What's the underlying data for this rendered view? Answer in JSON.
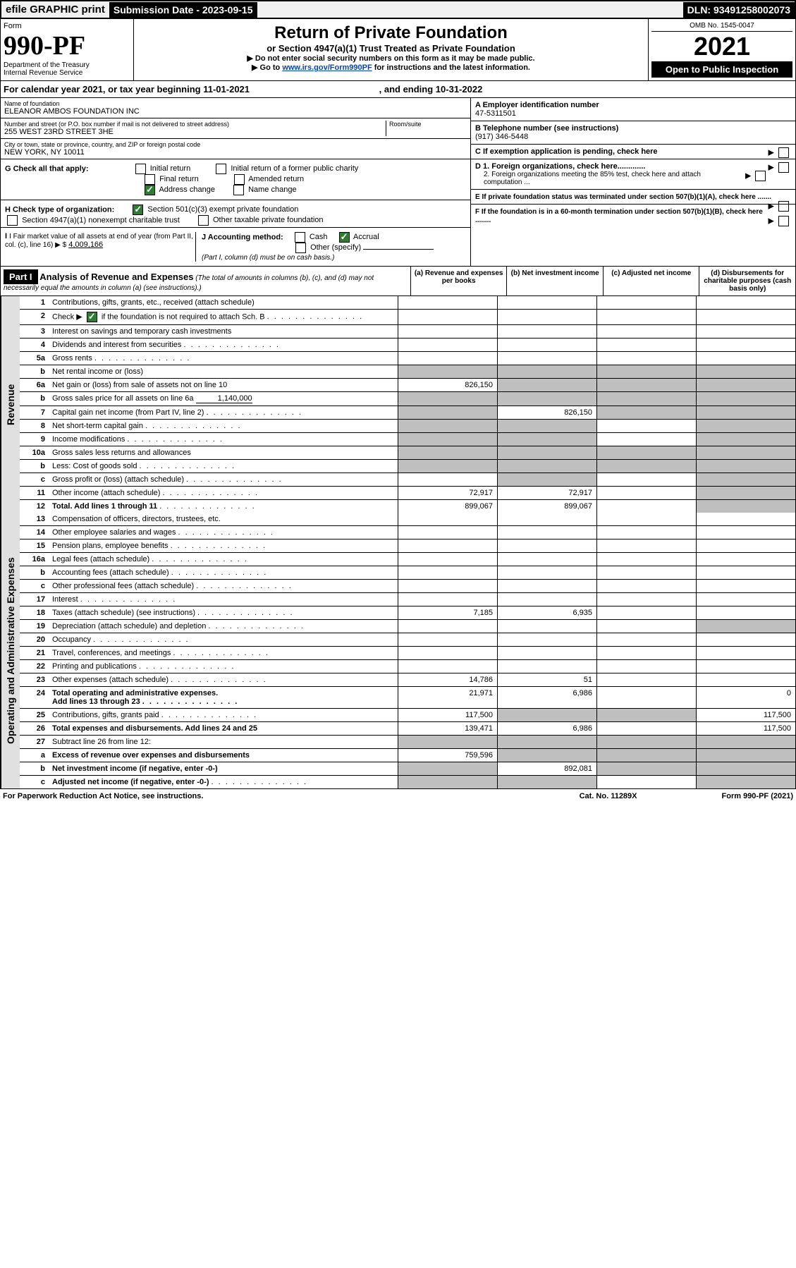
{
  "topbar": {
    "efile": "efile GRAPHIC print",
    "subdate_label": "Submission Date - 2023-09-15",
    "dln": "DLN: 93491258002073"
  },
  "header": {
    "form_word": "Form",
    "form_no": "990-PF",
    "dept": "Department of the Treasury",
    "irs": "Internal Revenue Service",
    "title": "Return of Private Foundation",
    "subtitle": "or Section 4947(a)(1) Trust Treated as Private Foundation",
    "instr1": "▶ Do not enter social security numbers on this form as it may be made public.",
    "instr2_pre": "▶ Go to ",
    "instr2_link": "www.irs.gov/Form990PF",
    "instr2_post": " for instructions and the latest information.",
    "omb": "OMB No. 1545-0047",
    "year": "2021",
    "inspect": "Open to Public Inspection"
  },
  "cal": {
    "pre": "For calendar year 2021, or tax year beginning ",
    "begin": "11-01-2021",
    "mid": " , and ending ",
    "end": "10-31-2022"
  },
  "entity": {
    "name_lbl": "Name of foundation",
    "name": "ELEANOR AMBOS FOUNDATION INC",
    "addr_lbl": "Number and street (or P.O. box number if mail is not delivered to street address)",
    "room_lbl": "Room/suite",
    "addr": "255 WEST 23RD STREET 3HE",
    "city_lbl": "City or town, state or province, country, and ZIP or foreign postal code",
    "city": "NEW YORK, NY  10011"
  },
  "right": {
    "a_lbl": "A Employer identification number",
    "a_val": "47-5311501",
    "b_lbl": "B Telephone number (see instructions)",
    "b_val": "(917) 346-5448",
    "c_lbl": "C If exemption application is pending, check here",
    "d1": "D 1. Foreign organizations, check here.............",
    "d2": "2. Foreign organizations meeting the 85% test, check here and attach computation ...",
    "e": "E If private foundation status was terminated under section 507(b)(1)(A), check here .......",
    "f": "F If the foundation is in a 60-month termination under section 507(b)(1)(B), check here ........"
  },
  "g": {
    "label": "G Check all that apply:",
    "opts": [
      "Initial return",
      "Initial return of a former public charity",
      "Final return",
      "Amended return",
      "Address change",
      "Name change"
    ]
  },
  "h": {
    "label": "H Check type of organization:",
    "o1": "Section 501(c)(3) exempt private foundation",
    "o2": "Section 4947(a)(1) nonexempt charitable trust",
    "o3": "Other taxable private foundation"
  },
  "i": {
    "label": "I Fair market value of all assets at end of year (from Part II, col. (c), line 16) ▶ $",
    "val": "4,009,166"
  },
  "j": {
    "label": "J Accounting method:",
    "o1": "Cash",
    "o2": "Accrual",
    "o3": "Other (specify)",
    "note": "(Part I, column (d) must be on cash basis.)"
  },
  "part1": {
    "hdr": "Part I",
    "title": "Analysis of Revenue and Expenses",
    "sub": "(The total of amounts in columns (b), (c), and (d) may not necessarily equal the amounts in column (a) (see instructions).)",
    "cols": {
      "a": "(a) Revenue and expenses per books",
      "b": "(b) Net investment income",
      "c": "(c) Adjusted net income",
      "d": "(d) Disbursements for charitable purposes (cash basis only)"
    }
  },
  "sections": {
    "rev": "Revenue",
    "exp": "Operating and Administrative Expenses"
  },
  "lines": {
    "1": {
      "n": "1",
      "d": "Contributions, gifts, grants, etc., received (attach schedule)"
    },
    "2": {
      "n": "2",
      "d_pre": "Check ▶ ",
      "d_post": " if the foundation is not required to attach Sch. B"
    },
    "3": {
      "n": "3",
      "d": "Interest on savings and temporary cash investments"
    },
    "4": {
      "n": "4",
      "d": "Dividends and interest from securities"
    },
    "5a": {
      "n": "5a",
      "d": "Gross rents"
    },
    "5b": {
      "n": "b",
      "d": "Net rental income or (loss)"
    },
    "6a": {
      "n": "6a",
      "d": "Net gain or (loss) from sale of assets not on line 10",
      "a": "826,150"
    },
    "6b": {
      "n": "b",
      "d": "Gross sales price for all assets on line 6a",
      "v": "1,140,000"
    },
    "7": {
      "n": "7",
      "d": "Capital gain net income (from Part IV, line 2)",
      "b": "826,150"
    },
    "8": {
      "n": "8",
      "d": "Net short-term capital gain"
    },
    "9": {
      "n": "9",
      "d": "Income modifications"
    },
    "10a": {
      "n": "10a",
      "d": "Gross sales less returns and allowances"
    },
    "10b": {
      "n": "b",
      "d": "Less: Cost of goods sold"
    },
    "10c": {
      "n": "c",
      "d": "Gross profit or (loss) (attach schedule)"
    },
    "11": {
      "n": "11",
      "d": "Other income (attach schedule)",
      "a": "72,917",
      "b": "72,917"
    },
    "12": {
      "n": "12",
      "d": "Total. Add lines 1 through 11",
      "a": "899,067",
      "b": "899,067"
    },
    "13": {
      "n": "13",
      "d": "Compensation of officers, directors, trustees, etc."
    },
    "14": {
      "n": "14",
      "d": "Other employee salaries and wages"
    },
    "15": {
      "n": "15",
      "d": "Pension plans, employee benefits"
    },
    "16a": {
      "n": "16a",
      "d": "Legal fees (attach schedule)"
    },
    "16b": {
      "n": "b",
      "d": "Accounting fees (attach schedule)"
    },
    "16c": {
      "n": "c",
      "d": "Other professional fees (attach schedule)"
    },
    "17": {
      "n": "17",
      "d": "Interest"
    },
    "18": {
      "n": "18",
      "d": "Taxes (attach schedule) (see instructions)",
      "a": "7,185",
      "b": "6,935"
    },
    "19": {
      "n": "19",
      "d": "Depreciation (attach schedule) and depletion"
    },
    "20": {
      "n": "20",
      "d": "Occupancy"
    },
    "21": {
      "n": "21",
      "d": "Travel, conferences, and meetings"
    },
    "22": {
      "n": "22",
      "d": "Printing and publications"
    },
    "23": {
      "n": "23",
      "d": "Other expenses (attach schedule)",
      "a": "14,786",
      "b": "51"
    },
    "24": {
      "n": "24",
      "d": "Total operating and administrative expenses.",
      "d2": "Add lines 13 through 23",
      "a": "21,971",
      "b": "6,986",
      "dd": "0"
    },
    "25": {
      "n": "25",
      "d": "Contributions, gifts, grants paid",
      "a": "117,500",
      "dd": "117,500"
    },
    "26": {
      "n": "26",
      "d": "Total expenses and disbursements. Add lines 24 and 25",
      "a": "139,471",
      "b": "6,986",
      "dd": "117,500"
    },
    "27": {
      "n": "27",
      "d": "Subtract line 26 from line 12:"
    },
    "27a": {
      "n": "a",
      "d": "Excess of revenue over expenses and disbursements",
      "a": "759,596"
    },
    "27b": {
      "n": "b",
      "d": "Net investment income (if negative, enter -0-)",
      "b": "892,081"
    },
    "27c": {
      "n": "c",
      "d": "Adjusted net income (if negative, enter -0-)"
    }
  },
  "footer": {
    "l": "For Paperwork Reduction Act Notice, see instructions.",
    "c": "Cat. No. 11289X",
    "r": "Form 990-PF (2021)"
  }
}
